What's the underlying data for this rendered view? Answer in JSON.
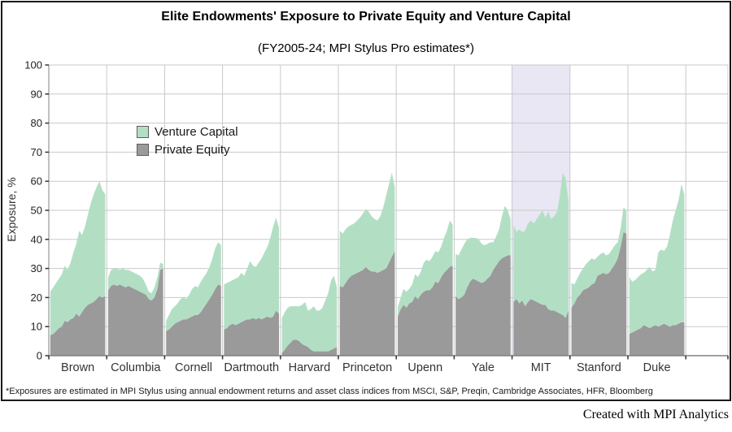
{
  "title": "Elite Endowments' Exposure to Private Equity and Venture Capital",
  "subtitle": "(FY2005-24; MPI Stylus Pro estimates*)",
  "footnote": "*Exposures are estimated in MPI Stylus using annual endowment returns and asset class indices from MSCI, S&P, Preqin, Cambridge Associates, HFR, Bloomberg",
  "credit": "Created with MPI Analytics",
  "legend": [
    {
      "label": "Venture Capital",
      "color": "#b2dfc4"
    },
    {
      "label": "Private Equity",
      "color": "#9a9a9a"
    }
  ],
  "y_axis": {
    "label": "Exposure, %",
    "ticks": [
      0,
      10,
      20,
      30,
      40,
      50,
      60,
      70,
      80,
      90,
      100
    ],
    "min": 0,
    "max": 100
  },
  "colors": {
    "venture_capital": "#b2dfc4",
    "private_equity": "#9a9a9a",
    "highlight_background": "#e9e7f4",
    "gridline": "#c9c9c9",
    "axis": "#808080",
    "tick": "#333333",
    "label_text": "#333333"
  },
  "chart_data": {
    "type": "area",
    "stacked": true,
    "layout": "small-multiples, one panel per endowment, 20 annual points each",
    "period": "FY2005-FY2024",
    "first_year": 2005,
    "last_year": 2024,
    "points_per_panel": 20,
    "ylim": [
      0,
      100
    ],
    "grid": true,
    "legend_position": "upper-left-inside",
    "highlighted_category": "MIT",
    "series_note": "pe = Private Equity exposure %; total = top of stack (Private Equity + Venture Capital) %; VC = total - pe",
    "categories": [
      "Brown",
      "Columbia",
      "Cornell",
      "Dartmouth",
      "Harvard",
      "Princeton",
      "Upenn",
      "Yale",
      "MIT",
      "Stanford",
      "Duke"
    ],
    "panels": [
      {
        "name": "Brown",
        "pe": [
          7,
          7.5,
          8.5,
          9.5,
          10,
          12,
          11.5,
          12.5,
          13,
          14.5,
          13.5,
          15,
          16.5,
          17.5,
          18,
          18.5,
          19.5,
          20.5,
          20,
          20.5
        ],
        "total": [
          22,
          23.5,
          25,
          26.5,
          28,
          31,
          29.5,
          32,
          35.5,
          38.5,
          43,
          41.5,
          44.5,
          48.5,
          52.5,
          55.5,
          58,
          60,
          57,
          55.5
        ]
      },
      {
        "name": "Columbia",
        "pe": [
          22.5,
          24,
          24.5,
          24,
          24.5,
          24,
          23.5,
          24,
          23.5,
          23,
          22.5,
          22,
          21.5,
          21,
          19.5,
          19,
          20,
          23,
          29.5,
          30
        ],
        "total": [
          27,
          29.5,
          30,
          30,
          29.5,
          30,
          29.5,
          29.5,
          29,
          28.5,
          28,
          27.5,
          26.5,
          24.5,
          22,
          21.5,
          23.5,
          27,
          32,
          31.5
        ]
      },
      {
        "name": "Cornell",
        "pe": [
          8.5,
          9,
          10,
          11,
          11.5,
          12,
          12.5,
          12.5,
          13,
          13.5,
          14,
          14,
          15,
          16.5,
          18,
          19.5,
          21,
          23,
          24.5,
          24
        ],
        "total": [
          12,
          14,
          16,
          17,
          18,
          19.5,
          20,
          19.5,
          21,
          23,
          24,
          23.5,
          25.5,
          27,
          28.5,
          30.5,
          33.5,
          37,
          39,
          38
        ]
      },
      {
        "name": "Dartmouth",
        "pe": [
          9,
          9.5,
          10.5,
          11,
          10.5,
          11,
          11.5,
          12,
          12.5,
          12.5,
          13,
          12.5,
          13,
          12.5,
          13,
          13.5,
          13,
          13.5,
          15.5,
          14.5
        ],
        "total": [
          24.5,
          25,
          25.5,
          26,
          26.5,
          27,
          28.5,
          27.5,
          30,
          32.5,
          31,
          30.5,
          32,
          33.5,
          35.5,
          37.5,
          40.5,
          44.5,
          47.5,
          44
        ]
      },
      {
        "name": "Harvard",
        "pe": [
          1,
          2,
          3.5,
          4.5,
          5.5,
          5.5,
          5,
          4,
          3.5,
          3,
          2,
          1.5,
          1.5,
          1.5,
          1.5,
          1.5,
          1.5,
          2,
          2.5,
          3
        ],
        "total": [
          13,
          15,
          16.5,
          17,
          17,
          17,
          17,
          17.5,
          18.5,
          15.5,
          16,
          17,
          15.5,
          15.5,
          16.5,
          19,
          21.5,
          26,
          27.5,
          23.5
        ]
      },
      {
        "name": "Princeton",
        "pe": [
          24,
          23.5,
          25,
          26.5,
          27.5,
          28,
          28.5,
          29,
          29.5,
          30.5,
          29.5,
          29,
          29,
          28.5,
          29,
          29.5,
          30,
          32,
          34,
          36
        ],
        "total": [
          43,
          42,
          43.5,
          44.5,
          45,
          45.5,
          46.5,
          47.5,
          49,
          50.5,
          49.5,
          48,
          47,
          46.5,
          48,
          51,
          55,
          59,
          63,
          58
        ]
      },
      {
        "name": "Upenn",
        "pe": [
          13.5,
          16,
          17.5,
          16.5,
          18,
          18.5,
          20.5,
          19.5,
          21,
          22,
          22.5,
          22.5,
          23.5,
          25.5,
          25,
          27,
          28.5,
          29.5,
          30.5,
          31
        ],
        "total": [
          16.5,
          20,
          23,
          22,
          23,
          24.5,
          28,
          27,
          29,
          32,
          33,
          32.5,
          34,
          36,
          35.5,
          37.5,
          40.5,
          43,
          46.5,
          45
        ]
      },
      {
        "name": "Yale",
        "pe": [
          20.5,
          19.5,
          20,
          21,
          23.5,
          25.5,
          26.5,
          26,
          25.5,
          25,
          25.5,
          26.5,
          27.5,
          29.5,
          31,
          32.5,
          33.5,
          34,
          34.5,
          34.5
        ],
        "total": [
          35,
          34.5,
          36.5,
          38.5,
          40,
          40.5,
          40.5,
          40.5,
          40,
          38.5,
          38,
          38.5,
          39,
          39,
          41,
          43.5,
          48,
          51.5,
          50,
          47
        ]
      },
      {
        "name": "MIT",
        "pe": [
          18.5,
          19.5,
          18,
          19,
          17,
          18.5,
          19.5,
          19,
          18.5,
          18,
          17.5,
          17.5,
          16,
          15.5,
          15.5,
          15,
          14.5,
          14,
          13,
          15.5
        ],
        "total": [
          45,
          42.5,
          43.5,
          42.5,
          43,
          45.5,
          46.5,
          45.5,
          47,
          48.5,
          50,
          47.5,
          49.5,
          47,
          48,
          49.5,
          55,
          63,
          61,
          53
        ]
      },
      {
        "name": "Stanford",
        "pe": [
          16.5,
          18,
          20,
          21,
          22.5,
          23,
          23.5,
          24.5,
          25,
          27.5,
          28,
          28.5,
          28,
          28.5,
          30,
          31.5,
          33.5,
          37.5,
          42.5,
          42
        ],
        "total": [
          25,
          24.5,
          26.5,
          28.5,
          30,
          31.5,
          32.5,
          33.5,
          33,
          34,
          35,
          35.5,
          34.5,
          35,
          36.5,
          38,
          39,
          44,
          51,
          50
        ]
      },
      {
        "name": "Duke",
        "pe": [
          7.5,
          8,
          8.5,
          9,
          9.5,
          10.5,
          10,
          9.5,
          10,
          10.5,
          10,
          10.5,
          11,
          10.5,
          10,
          10.5,
          10.5,
          11,
          11.5,
          11.5
        ],
        "total": [
          27,
          25.5,
          26,
          27,
          28,
          28.5,
          29.5,
          30.5,
          29,
          29.5,
          35.5,
          36.5,
          36,
          37.5,
          41.5,
          46.5,
          50,
          53.5,
          59,
          55.5
        ]
      }
    ]
  }
}
